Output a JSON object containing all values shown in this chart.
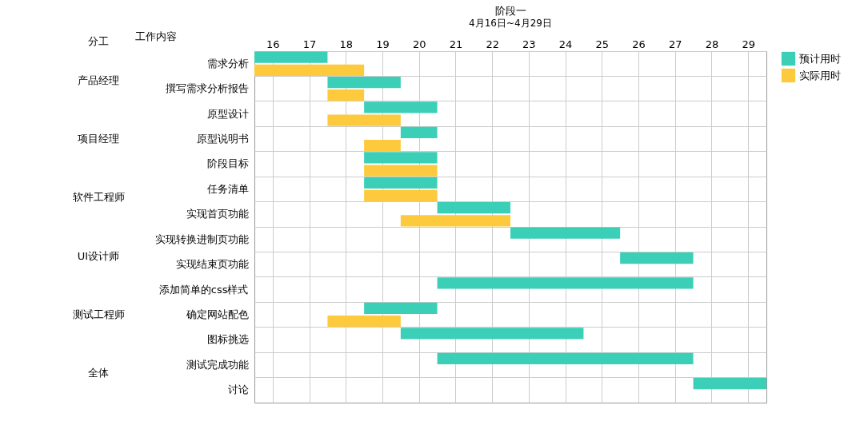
{
  "chart_data": {
    "type": "bar",
    "orientation": "horizontal",
    "title": "阶段一",
    "subtitle": "4月16日~4月29日",
    "ylabel": "工作内容",
    "categories": [
      "需求分析",
      "撰写需求分析报告",
      "原型设计",
      "原型说明书",
      "阶段目标",
      "任务清单",
      "实现首页功能",
      "实现转换进制页功能",
      "实现结束页功能",
      "添加简单的css样式",
      "确定网站配色",
      "图标挑选",
      "测试完成功能",
      "讨论"
    ],
    "series": [
      {
        "name": "预计用时",
        "color": "#3ccfb7",
        "base": [
          16,
          18,
          19,
          20,
          19,
          19,
          21,
          23,
          26,
          21,
          19,
          20,
          21,
          28
        ],
        "values": [
          2,
          2,
          2,
          1,
          2,
          2,
          2,
          3,
          2,
          7,
          2,
          5,
          7,
          2
        ]
      },
      {
        "name": "实际用时",
        "color": "#fcca3c",
        "base": [
          16,
          18,
          18,
          19,
          19,
          19,
          20,
          null,
          null,
          null,
          18,
          null,
          null,
          null
        ],
        "values": [
          3,
          1,
          2,
          1,
          2,
          2,
          3,
          null,
          null,
          null,
          2,
          null,
          null,
          null
        ]
      }
    ],
    "xlim": [
      16,
      30
    ],
    "xticks": [
      {
        "value": 16.5,
        "label": "16"
      },
      {
        "value": 17.5,
        "label": "17"
      },
      {
        "value": 18.5,
        "label": "18"
      },
      {
        "value": 19.5,
        "label": "19"
      },
      {
        "value": 20.5,
        "label": "20"
      },
      {
        "value": 21.5,
        "label": "21"
      },
      {
        "value": 22.5,
        "label": "22"
      },
      {
        "value": 23.5,
        "label": "23"
      },
      {
        "value": 24.5,
        "label": "24"
      },
      {
        "value": 25.5,
        "label": "25"
      },
      {
        "value": 26.5,
        "label": "26"
      },
      {
        "value": 27.5,
        "label": "27"
      },
      {
        "value": 28.5,
        "label": "28"
      },
      {
        "value": 29.5,
        "label": "29"
      }
    ],
    "grid": true,
    "legend": "right",
    "annotations": [
      "分工",
      "产品经理",
      "项目经理",
      "软件工程师",
      "UI设计师",
      "测试工程师",
      "全体"
    ]
  }
}
